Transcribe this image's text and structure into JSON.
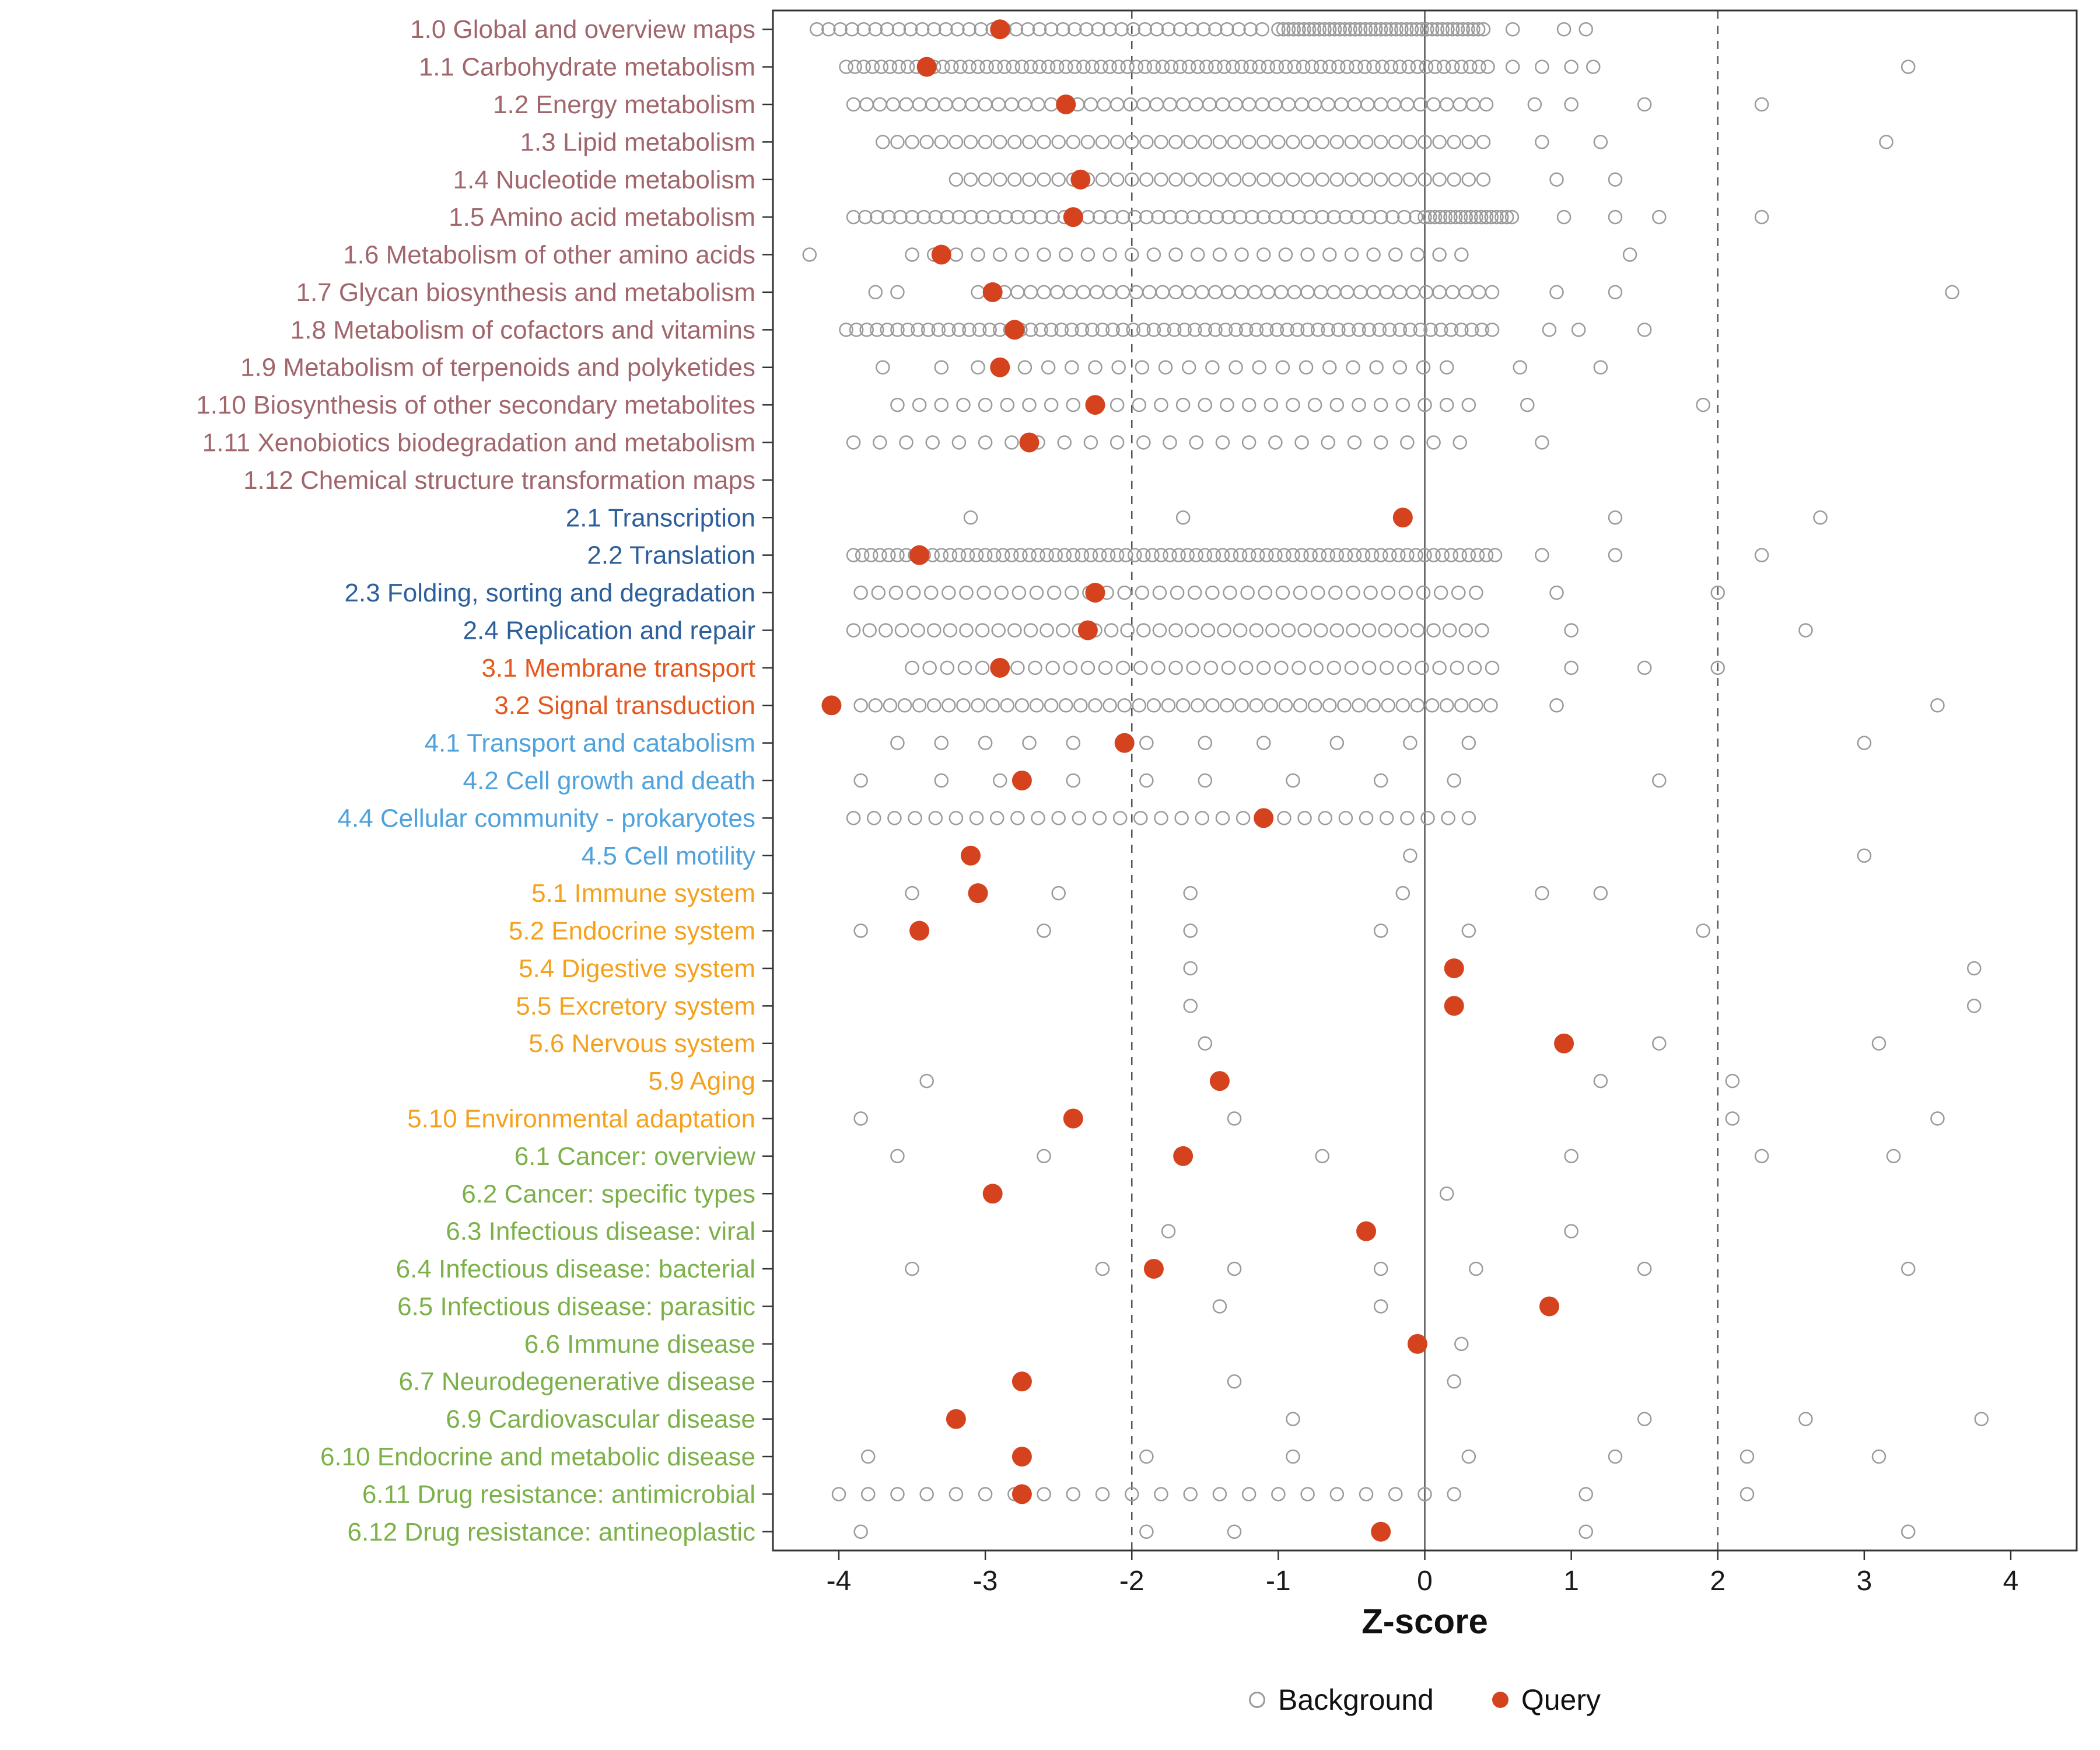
{
  "chart_data": {
    "type": "scatter",
    "title": "",
    "xlabel": "Z-score",
    "xticks": [
      -4,
      -3,
      -2,
      -1,
      0,
      1,
      2,
      3,
      4
    ],
    "xlim": [
      -4.45,
      4.45
    ],
    "grid": false,
    "legend_position": "bottom",
    "guides": {
      "solid": [
        0
      ],
      "dashed": [
        -2,
        2
      ]
    },
    "legend": [
      {
        "name": "Background"
      },
      {
        "name": "Query"
      }
    ],
    "colors": {
      "query": "#D5421E",
      "background_stroke": "#9A9A9A",
      "guide": "#555555",
      "panel_border": "#333333",
      "axis_text": "#1a1a1a"
    },
    "group_colors": {
      "metabolism": "#A1666C",
      "genetic-info": "#2D5F9A",
      "env-info": "#E4581F",
      "cellular": "#4FA2DC",
      "organismal": "#F4A11D",
      "disease": "#7CB14A"
    },
    "rows": [
      {
        "label": "1.0 Global and overview maps",
        "group": "metabolism",
        "query": -2.9,
        "bg_bands": [
          [
            -4.15,
            -1.05,
            0.08
          ],
          [
            -1.0,
            0.4,
            0.035
          ]
        ],
        "bg_points": [
          0.6,
          0.95,
          1.1
        ]
      },
      {
        "label": "1.1 Carbohydrate metabolism",
        "group": "metabolism",
        "query": -3.4,
        "bg_bands": [
          [
            -3.95,
            0.45,
            0.06
          ]
        ],
        "bg_points": [
          0.6,
          0.8,
          1.0,
          1.15,
          3.3
        ]
      },
      {
        "label": "1.2 Energy metabolism",
        "group": "metabolism",
        "query": -2.45,
        "bg_bands": [
          [
            -3.9,
            0.5,
            0.09
          ]
        ],
        "bg_points": [
          0.75,
          1.0,
          1.5,
          2.3
        ]
      },
      {
        "label": "1.3 Lipid metabolism",
        "group": "metabolism",
        "query": null,
        "bg_bands": [
          [
            -3.7,
            0.4,
            0.1
          ]
        ],
        "bg_points": [
          0.8,
          1.2,
          3.15
        ]
      },
      {
        "label": "1.4 Nucleotide metabolism",
        "group": "metabolism",
        "query": -2.35,
        "bg_bands": [
          [
            -3.2,
            0.45,
            0.1
          ]
        ],
        "bg_points": [
          0.9,
          1.3
        ]
      },
      {
        "label": "1.5 Amino acid metabolism",
        "group": "metabolism",
        "query": -2.4,
        "bg_bands": [
          [
            -3.9,
            -0.05,
            0.08
          ],
          [
            0.0,
            0.6,
            0.035
          ]
        ],
        "bg_points": [
          0.95,
          1.3,
          1.6,
          2.3
        ]
      },
      {
        "label": "1.6 Metabolism of other amino acids",
        "group": "metabolism",
        "query": -3.3,
        "bg_bands": [
          [
            -3.5,
            0.3,
            0.15
          ]
        ],
        "bg_points": [
          -4.2,
          1.4
        ]
      },
      {
        "label": "1.7 Glycan biosynthesis and metabolism",
        "group": "metabolism",
        "query": -2.95,
        "bg_bands": [
          [
            -3.05,
            0.5,
            0.09
          ]
        ],
        "bg_points": [
          -3.75,
          -3.6,
          0.9,
          1.3,
          3.6
        ]
      },
      {
        "label": "1.8 Metabolism of cofactors and vitamins",
        "group": "metabolism",
        "query": -2.8,
        "bg_bands": [
          [
            -3.95,
            0.5,
            0.07
          ]
        ],
        "bg_points": [
          0.85,
          1.05,
          1.5
        ]
      },
      {
        "label": "1.9 Metabolism of terpenoids and polyketides",
        "group": "metabolism",
        "query": -2.9,
        "bg_bands": [
          [
            -3.05,
            0.3,
            0.16
          ]
        ],
        "bg_points": [
          -3.7,
          -3.3,
          0.65,
          1.2
        ]
      },
      {
        "label": "1.10 Biosynthesis of other secondary metabolites",
        "group": "metabolism",
        "query": -2.25,
        "bg_bands": [
          [
            -3.6,
            0.3,
            0.15
          ]
        ],
        "bg_points": [
          0.7,
          1.9
        ]
      },
      {
        "label": "1.11 Xenobiotics biodegradation and metabolism",
        "group": "metabolism",
        "query": -2.7,
        "bg_bands": [
          [
            -3.9,
            0.3,
            0.18
          ]
        ],
        "bg_points": [
          0.8
        ]
      },
      {
        "label": "1.12 Chemical structure transformation maps",
        "group": "metabolism",
        "query": null,
        "bg_bands": [],
        "bg_points": []
      },
      {
        "label": "2.1 Transcription",
        "group": "genetic-info",
        "query": -0.15,
        "bg_bands": [],
        "bg_points": [
          -3.1,
          -1.65,
          1.3,
          2.7
        ]
      },
      {
        "label": "2.2 Translation",
        "group": "genetic-info",
        "query": -3.45,
        "bg_bands": [
          [
            -3.9,
            0.5,
            0.06
          ]
        ],
        "bg_points": [
          0.8,
          1.3,
          2.3
        ]
      },
      {
        "label": "2.3 Folding, sorting and degradation",
        "group": "genetic-info",
        "query": -2.25,
        "bg_bands": [
          [
            -3.85,
            0.4,
            0.12
          ]
        ],
        "bg_points": [
          0.9,
          2.0
        ]
      },
      {
        "label": "2.4 Replication and repair",
        "group": "genetic-info",
        "query": -2.3,
        "bg_bands": [
          [
            -3.9,
            0.4,
            0.11
          ]
        ],
        "bg_points": [
          1.0,
          2.6
        ]
      },
      {
        "label": "3.1 Membrane transport",
        "group": "env-info",
        "query": -2.9,
        "bg_bands": [
          [
            -3.5,
            0.5,
            0.12
          ]
        ],
        "bg_points": [
          1.0,
          1.5,
          2.0
        ]
      },
      {
        "label": "3.2 Signal transduction",
        "group": "env-info",
        "query": -4.05,
        "bg_bands": [
          [
            -3.85,
            0.5,
            0.1
          ]
        ],
        "bg_points": [
          0.9,
          3.5
        ]
      },
      {
        "label": "4.1 Transport and catabolism",
        "group": "cellular",
        "query": -2.05,
        "bg_bands": [],
        "bg_points": [
          -3.6,
          -3.3,
          -3.0,
          -2.7,
          -2.4,
          -1.9,
          -1.5,
          -1.1,
          -0.6,
          -0.1,
          0.3,
          3.0
        ]
      },
      {
        "label": "4.2 Cell growth and death",
        "group": "cellular",
        "query": -2.75,
        "bg_bands": [],
        "bg_points": [
          -3.85,
          -3.3,
          -2.9,
          -2.4,
          -1.9,
          -1.5,
          -0.9,
          -0.3,
          0.2,
          1.6
        ]
      },
      {
        "label": "4.4 Cellular community - prokaryotes",
        "group": "cellular",
        "query": -1.1,
        "bg_bands": [
          [
            -3.9,
            0.3,
            0.14
          ]
        ],
        "bg_points": []
      },
      {
        "label": "4.5 Cell motility",
        "group": "cellular",
        "query": -3.1,
        "bg_bands": [],
        "bg_points": [
          -0.1,
          3.0
        ]
      },
      {
        "label": "5.1 Immune system",
        "group": "organismal",
        "query": -3.05,
        "bg_bands": [],
        "bg_points": [
          -3.5,
          -2.5,
          -1.6,
          -0.15,
          0.8,
          1.2
        ]
      },
      {
        "label": "5.2 Endocrine system",
        "group": "organismal",
        "query": -3.45,
        "bg_bands": [],
        "bg_points": [
          -3.85,
          -2.6,
          -1.6,
          -0.3,
          0.3,
          1.9
        ]
      },
      {
        "label": "5.4 Digestive system",
        "group": "organismal",
        "query": 0.2,
        "bg_bands": [],
        "bg_points": [
          -1.6,
          3.75
        ]
      },
      {
        "label": "5.5 Excretory system",
        "group": "organismal",
        "query": 0.2,
        "bg_bands": [],
        "bg_points": [
          -1.6,
          3.75
        ]
      },
      {
        "label": "5.6 Nervous system",
        "group": "organismal",
        "query": 0.95,
        "bg_bands": [],
        "bg_points": [
          -1.5,
          1.6,
          3.1
        ]
      },
      {
        "label": "5.9 Aging",
        "group": "organismal",
        "query": -1.4,
        "bg_bands": [],
        "bg_points": [
          -3.4,
          1.2,
          2.1
        ]
      },
      {
        "label": "5.10 Environmental adaptation",
        "group": "organismal",
        "query": -2.4,
        "bg_bands": [],
        "bg_points": [
          -3.85,
          -1.3,
          2.1,
          3.5
        ]
      },
      {
        "label": "6.1 Cancer: overview",
        "group": "disease",
        "query": -1.65,
        "bg_bands": [],
        "bg_points": [
          -3.6,
          -2.6,
          -0.7,
          1.0,
          2.3,
          3.2
        ]
      },
      {
        "label": "6.2 Cancer: specific types",
        "group": "disease",
        "query": -2.95,
        "bg_bands": [],
        "bg_points": [
          0.15
        ]
      },
      {
        "label": "6.3 Infectious disease: viral",
        "group": "disease",
        "query": -0.4,
        "bg_bands": [],
        "bg_points": [
          -1.75,
          1.0
        ]
      },
      {
        "label": "6.4 Infectious disease: bacterial",
        "group": "disease",
        "query": -1.85,
        "bg_bands": [],
        "bg_points": [
          -3.5,
          -2.2,
          -1.3,
          -0.3,
          0.35,
          1.5,
          3.3
        ]
      },
      {
        "label": "6.5 Infectious disease: parasitic",
        "group": "disease",
        "query": 0.85,
        "bg_bands": [],
        "bg_points": [
          -1.4,
          -0.3
        ]
      },
      {
        "label": "6.6 Immune disease",
        "group": "disease",
        "query": -0.05,
        "bg_bands": [],
        "bg_points": [
          0.25
        ]
      },
      {
        "label": "6.7 Neurodegenerative disease",
        "group": "disease",
        "query": -2.75,
        "bg_bands": [],
        "bg_points": [
          -1.3,
          0.2
        ]
      },
      {
        "label": "6.9 Cardiovascular disease",
        "group": "disease",
        "query": -3.2,
        "bg_bands": [],
        "bg_points": [
          -0.9,
          1.5,
          2.6,
          3.8
        ]
      },
      {
        "label": "6.10 Endocrine and metabolic disease",
        "group": "disease",
        "query": -2.75,
        "bg_bands": [],
        "bg_points": [
          -3.8,
          -1.9,
          -0.9,
          0.3,
          1.3,
          2.2,
          3.1
        ]
      },
      {
        "label": "6.11 Drug resistance: antimicrobial",
        "group": "disease",
        "query": -2.75,
        "bg_bands": [
          [
            -4.0,
            0.3,
            0.2
          ]
        ],
        "bg_points": [
          1.1,
          2.2
        ]
      },
      {
        "label": "6.12 Drug resistance: antineoplastic",
        "group": "disease",
        "query": -0.3,
        "bg_bands": [],
        "bg_points": [
          -3.85,
          -1.9,
          -1.3,
          1.1,
          3.3
        ]
      }
    ]
  }
}
